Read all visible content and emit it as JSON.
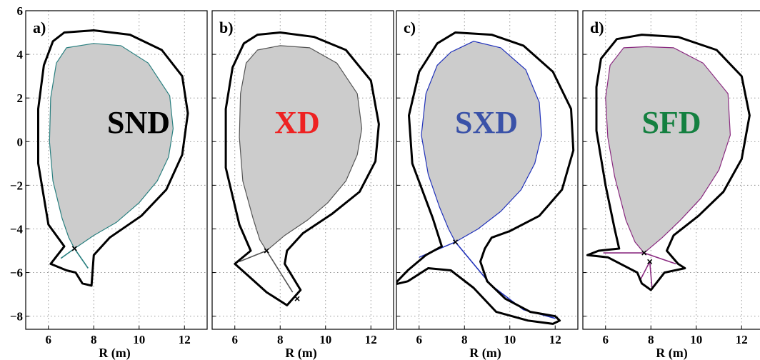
{
  "chart_data": [
    {
      "type": "line",
      "panel": "a)",
      "label": "SND",
      "label_color": "#000000",
      "xlabel": "R (m)",
      "ylabel": "",
      "xlim": [
        5,
        13
      ],
      "ylim": [
        -8.6,
        6
      ],
      "xticks": [
        "6",
        "8",
        "10",
        "12"
      ],
      "yticks": [
        "6",
        "4",
        "2",
        "0",
        "−2",
        "−4",
        "−6",
        "−8"
      ],
      "separatrix_color": "#2a8080",
      "x_points": [
        {
          "R": 7.15,
          "Z": -4.9
        }
      ],
      "wall": [
        [
          6.7,
          5.0
        ],
        [
          8.0,
          5.1
        ],
        [
          9.6,
          4.9
        ],
        [
          11.0,
          4.2
        ],
        [
          11.9,
          3.0
        ],
        [
          12.15,
          1.3
        ],
        [
          11.9,
          -0.6
        ],
        [
          11.2,
          -2.2
        ],
        [
          10.1,
          -3.4
        ],
        [
          8.7,
          -4.4
        ],
        [
          8.0,
          -5.2
        ],
        [
          7.9,
          -6.6
        ],
        [
          7.5,
          -6.5
        ],
        [
          7.2,
          -6.0
        ],
        [
          6.8,
          -5.9
        ],
        [
          6.1,
          -5.6
        ],
        [
          6.7,
          -4.8
        ],
        [
          6.0,
          -3.8
        ],
        [
          5.55,
          -1.0
        ],
        [
          5.55,
          1.5
        ],
        [
          5.8,
          3.5
        ],
        [
          6.2,
          4.6
        ],
        [
          6.7,
          5.0
        ]
      ],
      "plasma": [
        [
          6.8,
          4.3
        ],
        [
          8.0,
          4.5
        ],
        [
          9.2,
          4.4
        ],
        [
          10.4,
          3.6
        ],
        [
          11.35,
          2.1
        ],
        [
          11.5,
          0.6
        ],
        [
          11.3,
          -0.7
        ],
        [
          10.8,
          -1.8
        ],
        [
          10.0,
          -2.8
        ],
        [
          9.0,
          -3.7
        ],
        [
          8.0,
          -4.3
        ],
        [
          7.15,
          -4.9
        ],
        [
          6.9,
          -4.4
        ],
        [
          6.6,
          -3.5
        ],
        [
          6.2,
          -1.8
        ],
        [
          6.05,
          0.0
        ],
        [
          6.1,
          2.0
        ],
        [
          6.35,
          3.6
        ],
        [
          6.8,
          4.3
        ]
      ],
      "legs": [
        [
          [
            7.15,
            -4.9
          ],
          [
            6.55,
            -5.35
          ]
        ],
        [
          [
            7.15,
            -4.9
          ],
          [
            7.75,
            -5.8
          ]
        ]
      ]
    },
    {
      "type": "line",
      "panel": "b)",
      "label": "XD",
      "label_color": "#ee2222",
      "xlabel": "R (m)",
      "ylabel": "",
      "xlim": [
        5,
        13
      ],
      "ylim": [
        -8.6,
        6
      ],
      "xticks": [
        "6",
        "8",
        "10",
        "12"
      ],
      "yticks": [],
      "separatrix_color": "#555555",
      "x_points": [
        {
          "R": 7.4,
          "Z": -5.0
        },
        {
          "R": 8.75,
          "Z": -7.2
        }
      ],
      "wall": [
        [
          7.0,
          4.9
        ],
        [
          8.0,
          5.0
        ],
        [
          9.5,
          4.8
        ],
        [
          10.9,
          4.2
        ],
        [
          12.0,
          2.8
        ],
        [
          12.35,
          0.8
        ],
        [
          12.2,
          -0.9
        ],
        [
          11.5,
          -2.3
        ],
        [
          10.3,
          -3.3
        ],
        [
          9.0,
          -4.2
        ],
        [
          8.3,
          -5.0
        ],
        [
          8.2,
          -5.6
        ],
        [
          8.9,
          -6.8
        ],
        [
          8.3,
          -7.5
        ],
        [
          7.4,
          -6.9
        ],
        [
          6.65,
          -6.2
        ],
        [
          6.0,
          -5.6
        ],
        [
          6.7,
          -5.0
        ],
        [
          6.2,
          -3.8
        ],
        [
          5.6,
          -1.2
        ],
        [
          5.6,
          1.5
        ],
        [
          5.9,
          3.4
        ],
        [
          6.4,
          4.5
        ],
        [
          7.0,
          4.9
        ]
      ],
      "plasma": [
        [
          7.0,
          4.2
        ],
        [
          8.0,
          4.4
        ],
        [
          9.3,
          4.3
        ],
        [
          10.5,
          3.6
        ],
        [
          11.4,
          2.2
        ],
        [
          11.6,
          0.6
        ],
        [
          11.4,
          -0.6
        ],
        [
          10.9,
          -1.8
        ],
        [
          10.1,
          -2.8
        ],
        [
          9.2,
          -3.6
        ],
        [
          8.2,
          -4.3
        ],
        [
          7.4,
          -5.0
        ],
        [
          7.1,
          -4.5
        ],
        [
          6.8,
          -3.5
        ],
        [
          6.35,
          -1.8
        ],
        [
          6.2,
          0.2
        ],
        [
          6.25,
          2.2
        ],
        [
          6.5,
          3.6
        ],
        [
          7.0,
          4.2
        ]
      ],
      "legs": [
        [
          [
            7.4,
            -5.0
          ],
          [
            6.2,
            -5.5
          ]
        ],
        [
          [
            7.4,
            -5.0
          ],
          [
            8.55,
            -6.9
          ]
        ]
      ]
    },
    {
      "type": "line",
      "panel": "c)",
      "label": "SXD",
      "label_color": "#3a52a8",
      "xlabel": "R (m)",
      "ylabel": "",
      "xlim": [
        5,
        13
      ],
      "ylim": [
        -8.6,
        6
      ],
      "xticks": [
        "6",
        "8",
        "10",
        "12"
      ],
      "yticks": [],
      "separatrix_color": "#2233bb",
      "x_points": [
        {
          "R": 7.6,
          "Z": -4.6
        }
      ],
      "wall": [
        [
          7.6,
          5.0
        ],
        [
          9.2,
          4.9
        ],
        [
          10.6,
          4.4
        ],
        [
          11.9,
          3.2
        ],
        [
          12.7,
          1.5
        ],
        [
          12.8,
          -0.4
        ],
        [
          12.3,
          -2.2
        ],
        [
          11.3,
          -3.4
        ],
        [
          10.0,
          -4.1
        ],
        [
          9.2,
          -4.4
        ],
        [
          8.9,
          -4.9
        ],
        [
          8.7,
          -5.5
        ],
        [
          9.0,
          -6.4
        ],
        [
          9.8,
          -7.2
        ],
        [
          10.9,
          -7.8
        ],
        [
          12.0,
          -8.0
        ],
        [
          12.2,
          -8.2
        ],
        [
          11.9,
          -8.35
        ],
        [
          10.8,
          -8.2
        ],
        [
          9.4,
          -7.8
        ],
        [
          8.4,
          -6.7
        ],
        [
          7.4,
          -5.9
        ],
        [
          6.4,
          -5.8
        ],
        [
          5.5,
          -6.4
        ],
        [
          4.9,
          -6.55
        ],
        [
          5.5,
          -5.9
        ],
        [
          6.3,
          -5.2
        ],
        [
          7.0,
          -4.8
        ],
        [
          6.6,
          -3.5
        ],
        [
          5.7,
          -1.0
        ],
        [
          5.55,
          1.2
        ],
        [
          6.0,
          3.2
        ],
        [
          6.8,
          4.5
        ],
        [
          7.6,
          5.0
        ]
      ],
      "plasma": [
        [
          7.4,
          4.1
        ],
        [
          8.4,
          4.6
        ],
        [
          9.6,
          4.3
        ],
        [
          10.7,
          3.3
        ],
        [
          11.3,
          1.8
        ],
        [
          11.4,
          0.3
        ],
        [
          11.1,
          -1.0
        ],
        [
          10.5,
          -2.2
        ],
        [
          9.6,
          -3.2
        ],
        [
          8.6,
          -4.0
        ],
        [
          7.6,
          -4.6
        ],
        [
          7.3,
          -4.0
        ],
        [
          6.9,
          -3.0
        ],
        [
          6.4,
          -1.5
        ],
        [
          6.1,
          0.3
        ],
        [
          6.3,
          2.2
        ],
        [
          6.8,
          3.5
        ],
        [
          7.4,
          4.1
        ]
      ],
      "legs": [
        [
          [
            7.6,
            -4.6
          ],
          [
            6.0,
            -5.3
          ]
        ],
        [
          [
            7.6,
            -4.6
          ],
          [
            9.2,
            -6.6
          ],
          [
            10.6,
            -7.7
          ],
          [
            12.0,
            -8.1
          ]
        ]
      ]
    },
    {
      "type": "line",
      "panel": "d)",
      "label": "SFD",
      "label_color": "#148040",
      "xlabel": "R (m)",
      "ylabel": "",
      "xlim": [
        5,
        13
      ],
      "ylim": [
        -8.6,
        6
      ],
      "xticks": [
        "6",
        "8",
        "10",
        "12"
      ],
      "yticks": [],
      "separatrix_color": "#8a2a80",
      "x_points": [
        {
          "R": 7.7,
          "Z": -5.1
        },
        {
          "R": 7.95,
          "Z": -5.5
        }
      ],
      "wall": [
        [
          6.5,
          4.7
        ],
        [
          7.6,
          4.9
        ],
        [
          9.2,
          4.8
        ],
        [
          10.9,
          4.2
        ],
        [
          12.0,
          3.0
        ],
        [
          12.35,
          1.2
        ],
        [
          12.0,
          -0.8
        ],
        [
          11.2,
          -2.3
        ],
        [
          10.1,
          -3.4
        ],
        [
          9.0,
          -4.3
        ],
        [
          8.7,
          -5.0
        ],
        [
          9.2,
          -5.6
        ],
        [
          9.5,
          -5.8
        ],
        [
          8.6,
          -6.0
        ],
        [
          8.0,
          -6.8
        ],
        [
          7.6,
          -6.5
        ],
        [
          7.4,
          -6.0
        ],
        [
          6.1,
          -5.3
        ],
        [
          5.2,
          -5.2
        ],
        [
          5.7,
          -5.0
        ],
        [
          6.6,
          -4.9
        ],
        [
          6.4,
          -4.0
        ],
        [
          6.0,
          -2.0
        ],
        [
          5.6,
          0.5
        ],
        [
          5.6,
          2.5
        ],
        [
          5.8,
          3.8
        ],
        [
          6.5,
          4.7
        ]
      ],
      "plasma": [
        [
          6.8,
          4.3
        ],
        [
          7.8,
          4.35
        ],
        [
          9.0,
          4.3
        ],
        [
          10.3,
          3.6
        ],
        [
          11.4,
          2.2
        ],
        [
          11.5,
          0.3
        ],
        [
          11.0,
          -1.3
        ],
        [
          10.2,
          -2.6
        ],
        [
          9.3,
          -3.6
        ],
        [
          8.5,
          -4.4
        ],
        [
          7.7,
          -5.1
        ],
        [
          7.3,
          -4.6
        ],
        [
          6.9,
          -3.6
        ],
        [
          6.4,
          -1.6
        ],
        [
          6.1,
          0.2
        ],
        [
          6.0,
          2.0
        ],
        [
          6.2,
          3.5
        ],
        [
          6.8,
          4.3
        ]
      ],
      "legs": [
        [
          [
            7.7,
            -5.1
          ],
          [
            5.9,
            -5.1
          ]
        ],
        [
          [
            7.7,
            -5.1
          ],
          [
            9.1,
            -5.6
          ]
        ],
        [
          [
            7.95,
            -5.5
          ],
          [
            7.55,
            -6.3
          ]
        ],
        [
          [
            7.95,
            -5.5
          ],
          [
            8.05,
            -6.7
          ]
        ]
      ]
    }
  ]
}
